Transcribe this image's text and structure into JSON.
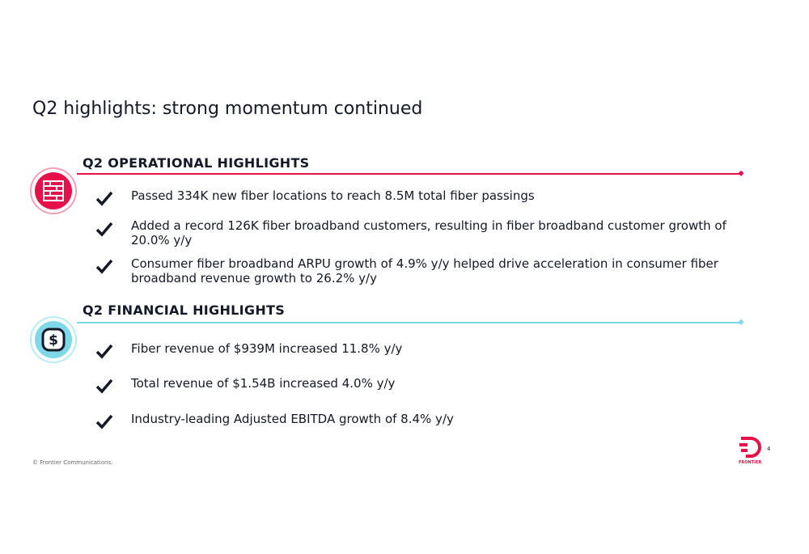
{
  "title": "Q2 highlights: strong momentum continued",
  "sections": [
    {
      "heading": "Q2 OPERATIONAL HIGHLIGHTS",
      "items": [
        "Passed 334K new fiber locations to reach 8.5M total fiber passings",
        "Added a record 126K fiber broadband customers, resulting in fiber broadband customer growth of 20.0% y/y",
        "Consumer fiber broadband ARPU growth of 4.9% y/y helped drive acceleration in consumer fiber broadband revenue growth to 26.2% y/y"
      ]
    },
    {
      "heading": "Q2 FINANCIAL HIGHLIGHTS",
      "items": [
        "Fiber revenue of $939M increased 11.8% y/y",
        "Total revenue of $1.54B increased 4.0% y/y",
        "Industry-leading Adjusted EBITDA growth of 8.4% y/y"
      ]
    }
  ],
  "footer": {
    "copyright": "© Frontier Communications.",
    "page_number": "4",
    "logo_text": "FRONTIER"
  }
}
